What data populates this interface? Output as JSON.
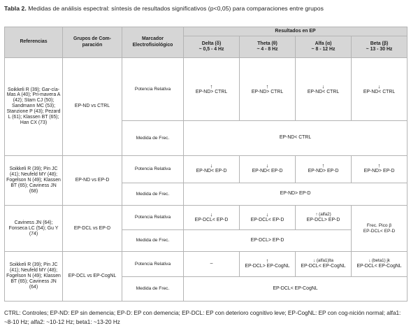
{
  "caption": {
    "label": "Tabla 2.",
    "text": "Medidas de análisis espectral: síntesis de resultados significativos (p<0,05) para comparaciones entre grupos"
  },
  "table": {
    "headers": {
      "referencias": "Referencias",
      "grupos": "Grupos de Com-paración",
      "marcador": "Marcador Electrofisiológico",
      "resultados": "Resultados en EP",
      "bands": [
        {
          "name": "Delta (δ)",
          "range": "~ 0,5 - 4 Hz"
        },
        {
          "name": "Theta (θ)",
          "range": "~ 4 - 8 Hz"
        },
        {
          "name": "Alfa (α)",
          "range": "~ 8 - 12 Hz"
        },
        {
          "name": "Beta (β)",
          "range": "~ 13 - 30 Hz"
        }
      ]
    },
    "groups": [
      {
        "refs": "Soikkeli R (39); Gar-cía-Mas A (40); Pri-mavera A (42); Stam CJ (50); Sandmann MC (53); Stanzione P (43); Pezard L (61); Klassen BT (65); Han CX (73)",
        "comparison": "EP-ND vs CTRL",
        "potencia": {
          "label": "Potencia Relativa",
          "delta": {
            "arrow": "↑",
            "text": "EP-ND> CTRL"
          },
          "theta": {
            "arrow": "↑",
            "text": "EP-ND> CTRL"
          },
          "alfa": {
            "arrow": "↓",
            "text": "EP-ND< CTRL"
          },
          "beta": {
            "arrow": "↓",
            "text": "EP-ND< CTRL"
          }
        },
        "medida": {
          "label": "Medida de Frec.",
          "value": "EP-ND< CTRL"
        }
      },
      {
        "refs": "Soikkeli R (39); Pin JC (41); Neufeld MY (48); Fogelson N (49); Klassen BT (65); Caviness JN (68)",
        "comparison": "EP-ND vs EP-D",
        "potencia": {
          "label": "Potencia Relativa",
          "delta": {
            "arrow": "↓",
            "text": "EP-ND< EP-D"
          },
          "theta": {
            "arrow": "↓",
            "text": "EP-ND< EP-D"
          },
          "alfa": {
            "arrow": "↑",
            "text": "EP-ND> EP-D"
          },
          "beta": {
            "arrow": "↑",
            "text": "EP-ND> EP-D"
          }
        },
        "medida": {
          "label": "Medida de Frec.",
          "value": "EP-ND> EP-D"
        }
      },
      {
        "refs": "Caviness JN (64); Fonseca LC (54); Gu Y (74)",
        "comparison": "EP-DCL vs EP-D",
        "potencia": {
          "label": "Potencia Relativa",
          "delta": {
            "arrow": "↓",
            "text": "EP-DCL< EP-D"
          },
          "theta": {
            "arrow": "↓",
            "text": "EP-DCL< EP-D"
          },
          "alfa": {
            "arrow": "↑",
            "note": "(alfa2)",
            "text": "EP-DCL> EP-D"
          }
        },
        "medida": {
          "label": "Medida de Frec.",
          "value": "EP-DCL> EP-D"
        },
        "beta_special": {
          "line1": "Frec. Pico β",
          "line2": "EP-DCL< EP-D"
        }
      },
      {
        "refs": "Soikkeli R (39); Pin JC (41); Neufeld MY (48); Fogelson N (49); Klassen BT (65); Caviness JN (64)",
        "comparison": "EP-DCL vs EP-CogNL",
        "potencia": {
          "label": "Potencia Relativa",
          "delta": {
            "text": "–"
          },
          "theta": {
            "arrow": "↑",
            "text": "EP-DCL> EP-CogNL"
          },
          "alfa": {
            "arrow": "↓",
            "note": "(alfa1)lta",
            "text": "EP-DCL< EP-CogNL"
          },
          "beta": {
            "arrow": "↓",
            "note": "(beta1) jk",
            "text": "EP-DCL< EP-CogNL"
          }
        },
        "medida": {
          "label": "Medida de Frec.",
          "value": "EP-DCL< EP-CogNL"
        }
      }
    ]
  },
  "footnote": "CTRL: Controles; EP-ND: EP sin demencia; EP-D: EP con demencia; EP-DCL: EP con deterioro cognitivo leve; EP-CogNL: EP con cog-nición normal; alfa1: ~8-10 Hz; alfa2: ~10-12 Hz; beta1: ~13-20 Hz"
}
